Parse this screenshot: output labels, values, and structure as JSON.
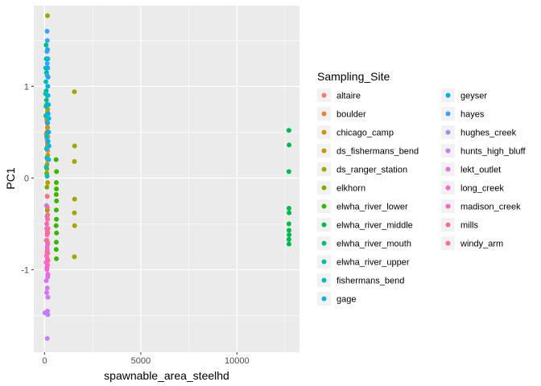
{
  "chart_data": {
    "type": "scatter",
    "xlabel": "spawnable_area_steelhd",
    "ylabel": "PC1",
    "xlim": [
      -560,
      13250
    ],
    "ylim": [
      -1.9,
      1.88
    ],
    "x_ticks": [
      {
        "value": 0,
        "label": "0"
      },
      {
        "value": 5000,
        "label": "5000"
      },
      {
        "value": 10000,
        "label": "10000"
      }
    ],
    "y_ticks": [
      {
        "value": -1,
        "label": "-1"
      },
      {
        "value": 0,
        "label": "0"
      },
      {
        "value": 1,
        "label": "1"
      }
    ],
    "grid": true,
    "legend": {
      "title": "Sampling_Site",
      "placement": "right",
      "columns": 2
    },
    "series": [
      {
        "name": "altaire",
        "color": "#F8766D",
        "points": [
          [
            120,
            0.42
          ],
          [
            140,
            0.55
          ],
          [
            160,
            0.3
          ],
          [
            110,
            0.65
          ],
          [
            150,
            0.2
          ]
        ]
      },
      {
        "name": "boulder",
        "color": "#EA8331",
        "points": [
          [
            130,
            0.6
          ],
          [
            150,
            0.72
          ],
          [
            115,
            0.5
          ],
          [
            170,
            0.45
          ],
          [
            140,
            0.38
          ]
        ]
      },
      {
        "name": "chicago_camp",
        "color": "#D89000",
        "points": [
          [
            100,
            0.8
          ],
          [
            120,
            0.62
          ],
          [
            140,
            0.7
          ],
          [
            160,
            0.55
          ],
          [
            90,
            0.48
          ]
        ]
      },
      {
        "name": "ds_fishermans_bend",
        "color": "#C09B00",
        "points": [
          [
            150,
            0.35
          ],
          [
            170,
            0.25
          ],
          [
            130,
            0.15
          ],
          [
            110,
            0.05
          ],
          [
            160,
            -0.05
          ]
        ]
      },
      {
        "name": "ds_ranger_station",
        "color": "#A3A500",
        "points": [
          [
            150,
            1.77
          ],
          [
            1550,
            0.94
          ],
          [
            1560,
            0.35
          ],
          [
            1550,
            0.18
          ],
          [
            1560,
            -0.23
          ],
          [
            1550,
            -0.38
          ],
          [
            1560,
            -0.52
          ],
          [
            1550,
            -0.86
          ],
          [
            130,
            0.9
          ],
          [
            160,
            0.75
          ],
          [
            120,
            0.1
          ],
          [
            140,
            -0.2
          ]
        ]
      },
      {
        "name": "elkhorn",
        "color": "#7CAE00",
        "points": [
          [
            120,
            -0.1
          ],
          [
            140,
            -0.35
          ],
          [
            160,
            -0.6
          ],
          [
            130,
            -0.8
          ],
          [
            110,
            0.05
          ]
        ]
      },
      {
        "name": "elwha_river_lower",
        "color": "#39B600",
        "points": [
          [
            600,
            0.2
          ],
          [
            620,
            0.07
          ],
          [
            610,
            -0.05
          ],
          [
            615,
            -0.12
          ],
          [
            605,
            -0.18
          ],
          [
            620,
            -0.25
          ],
          [
            610,
            -0.35
          ],
          [
            615,
            -0.45
          ],
          [
            600,
            -0.52
          ],
          [
            620,
            -0.6
          ],
          [
            610,
            -0.7
          ],
          [
            605,
            -0.78
          ],
          [
            615,
            -0.88
          ]
        ]
      },
      {
        "name": "elwha_river_middle",
        "color": "#00BB4E",
        "points": [
          [
            12700,
            0.52
          ],
          [
            12710,
            0.36
          ],
          [
            12700,
            0.07
          ],
          [
            12705,
            -0.33
          ],
          [
            12710,
            -0.38
          ],
          [
            12700,
            -0.5
          ],
          [
            12705,
            -0.57
          ],
          [
            12710,
            -0.62
          ],
          [
            12700,
            -0.67
          ],
          [
            12705,
            -0.72
          ]
        ]
      },
      {
        "name": "elwha_river_mouth",
        "color": "#00BF7D",
        "points": [
          [
            80,
            1.45
          ],
          [
            90,
            1.3
          ],
          [
            100,
            1.15
          ],
          [
            85,
            0.95
          ],
          [
            95,
            0.85
          ]
        ]
      },
      {
        "name": "elwha_river_upper",
        "color": "#00C1A3",
        "points": [
          [
            60,
            1.2
          ],
          [
            70,
            1.05
          ],
          [
            50,
            0.92
          ],
          [
            75,
            0.78
          ],
          [
            65,
            0.68
          ]
        ]
      },
      {
        "name": "fishermans_bend",
        "color": "#00BFC4",
        "points": [
          [
            100,
            0.32
          ],
          [
            120,
            0.22
          ],
          [
            90,
            0.12
          ],
          [
            110,
            0.45
          ],
          [
            130,
            0.02
          ]
        ]
      },
      {
        "name": "gage",
        "color": "#00BAE0",
        "points": [
          [
            200,
            0.8
          ],
          [
            220,
            0.65
          ],
          [
            210,
            0.5
          ],
          [
            230,
            0.35
          ],
          [
            215,
            0.2
          ]
        ]
      },
      {
        "name": "geyser",
        "color": "#00B0F6",
        "points": [
          [
            150,
            1.4
          ],
          [
            170,
            1.3
          ],
          [
            160,
            1.2
          ],
          [
            180,
            1.1
          ],
          [
            165,
            1.0
          ],
          [
            175,
            0.9
          ],
          [
            155,
            0.8
          ],
          [
            185,
            0.7
          ],
          [
            160,
            0.6
          ],
          [
            170,
            0.5
          ],
          [
            180,
            0.4
          ]
        ]
      },
      {
        "name": "hayes",
        "color": "#35A2FF",
        "points": [
          [
            130,
            1.6
          ],
          [
            140,
            1.5
          ],
          [
            120,
            1.38
          ],
          [
            135,
            1.25
          ],
          [
            125,
            1.12
          ]
        ]
      },
      {
        "name": "hughes_creek",
        "color": "#9590FF",
        "points": [
          [
            100,
            -0.3
          ],
          [
            120,
            -0.42
          ],
          [
            110,
            -0.55
          ],
          [
            90,
            -0.68
          ],
          [
            130,
            -0.75
          ]
        ]
      },
      {
        "name": "hunts_high_bluff",
        "color": "#C77CFF",
        "points": [
          [
            150,
            -0.95
          ],
          [
            160,
            -1.08
          ],
          [
            140,
            -1.2
          ],
          [
            170,
            -1.3
          ],
          [
            155,
            -1.45
          ],
          [
            20,
            -1.47
          ],
          [
            170,
            -1.49
          ],
          [
            140,
            -1.75
          ]
        ]
      },
      {
        "name": "lekt_outlet",
        "color": "#E76BF3",
        "points": [
          [
            100,
            -0.85
          ],
          [
            120,
            -1.0
          ],
          [
            90,
            -1.12
          ],
          [
            110,
            -1.25
          ],
          [
            80,
            -0.92
          ]
        ]
      },
      {
        "name": "long_creek",
        "color": "#FA62DB",
        "points": [
          [
            140,
            -0.6
          ],
          [
            160,
            -0.72
          ],
          [
            130,
            -0.82
          ],
          [
            150,
            -0.95
          ],
          [
            170,
            -1.05
          ]
        ]
      },
      {
        "name": "madison_creek",
        "color": "#FF62BC",
        "points": [
          [
            110,
            -0.5
          ],
          [
            125,
            -0.62
          ],
          [
            135,
            -0.78
          ],
          [
            145,
            -0.88
          ],
          [
            120,
            -0.98
          ]
        ]
      },
      {
        "name": "mills",
        "color": "#FF6C91",
        "points": [
          [
            160,
            -0.4
          ],
          [
            175,
            -0.55
          ],
          [
            150,
            -0.7
          ],
          [
            165,
            -0.82
          ],
          [
            180,
            -0.9
          ]
        ]
      },
      {
        "name": "windy_arm",
        "color": "#FF6C91",
        "points": [
          [
            130,
            -0.2
          ],
          [
            145,
            -0.32
          ],
          [
            155,
            -0.45
          ],
          [
            140,
            -0.58
          ],
          [
            125,
            -0.68
          ]
        ]
      }
    ]
  }
}
